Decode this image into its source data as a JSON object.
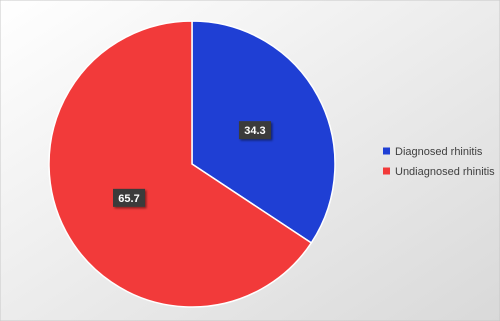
{
  "chart_data": {
    "type": "pie",
    "categories": [
      "Diagnosed rhinitis",
      "Undiagnosed rhinitis"
    ],
    "values": [
      34.3,
      65.7
    ],
    "colors": [
      "#1f3fd4",
      "#f23a3a"
    ],
    "legend": "right"
  }
}
